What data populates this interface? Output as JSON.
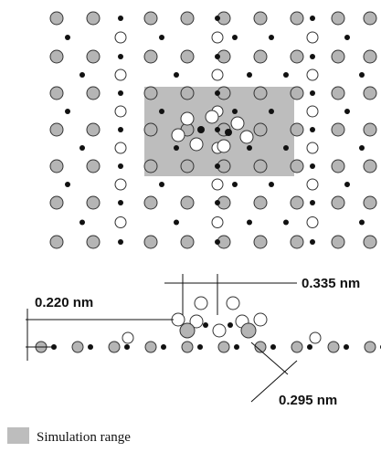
{
  "labels": {
    "spacing": "0.335 nm",
    "height": "0.220 nm",
    "diagonal": "0.295 nm"
  },
  "legend": {
    "label": "Simulation range"
  }
}
